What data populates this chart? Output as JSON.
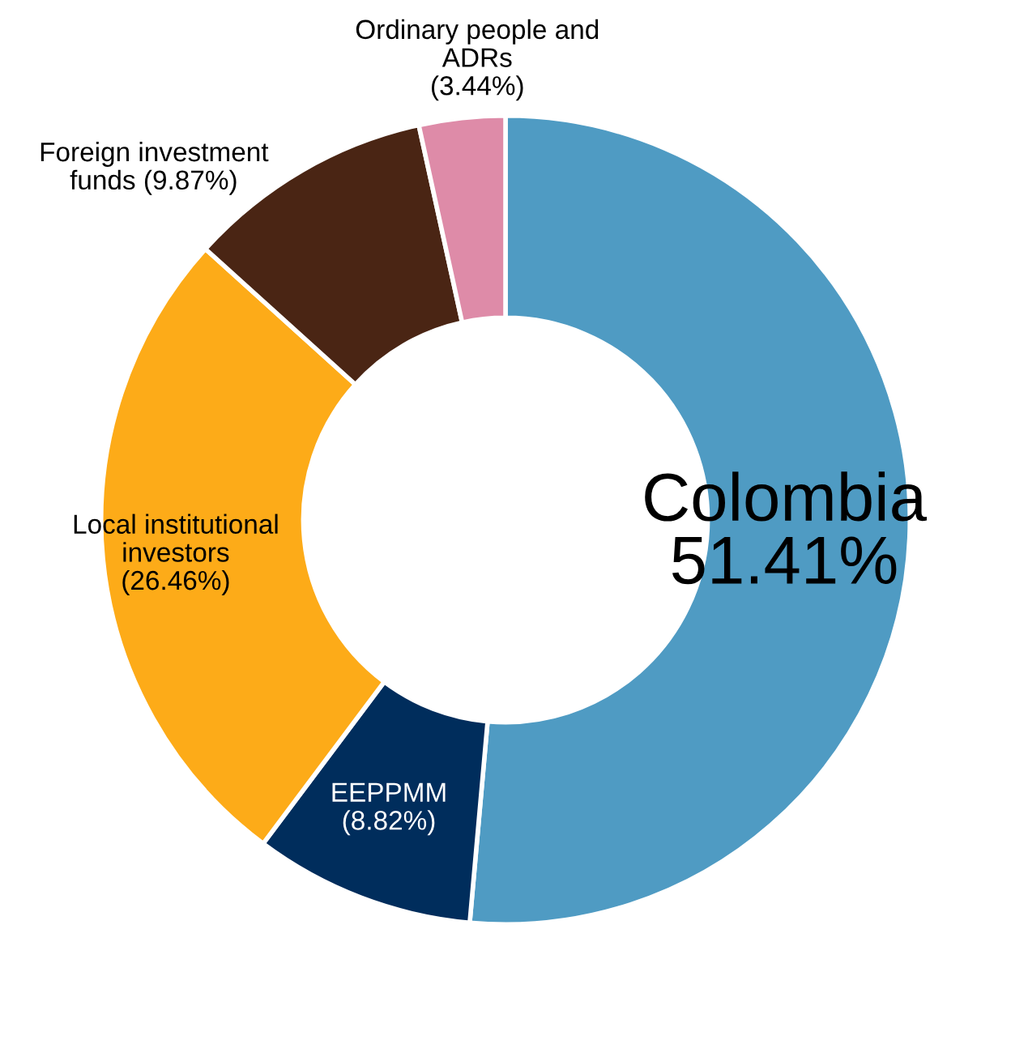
{
  "chart_data": {
    "type": "donut",
    "categories": [
      "Colombia",
      "EEPPMM",
      "Local institutional investors",
      "Foreign investment funds",
      "Ordinary people and ADRs"
    ],
    "values": [
      51.41,
      8.82,
      26.46,
      9.87,
      3.44
    ],
    "value_labels": [
      "51.41%",
      "(8.82%)",
      "(26.46%)",
      "(9.87%)",
      "(3.44%)"
    ],
    "colors": [
      "#4f9bc3",
      "#002d5c",
      "#fdab18",
      "#4a2514",
      "#de8ba8"
    ]
  }
}
